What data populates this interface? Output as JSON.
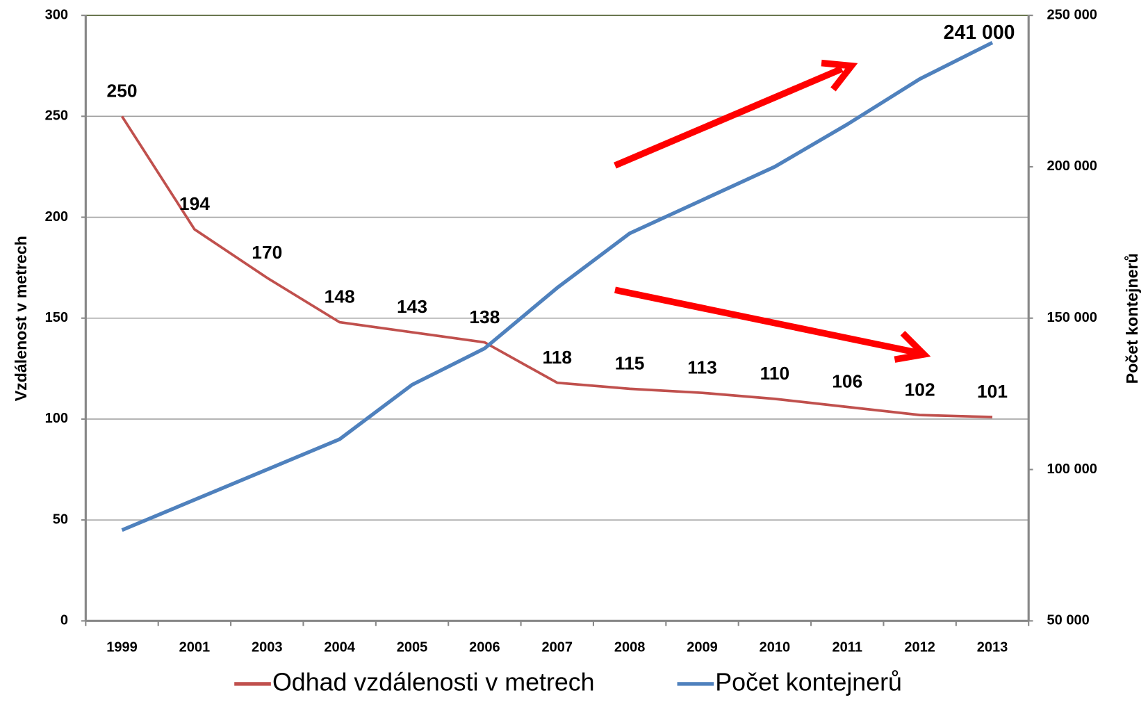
{
  "chart_data": {
    "type": "line",
    "categories": [
      "1999",
      "2001",
      "2003",
      "2004",
      "2005",
      "2006",
      "2007",
      "2008",
      "2009",
      "2010",
      "2011",
      "2012",
      "2013"
    ],
    "y_label": "Vzdálenost v metrech",
    "y2_label": "Počet kontejnerů",
    "ylim": [
      0,
      300
    ],
    "yticks": [
      0,
      50,
      100,
      150,
      200,
      250,
      300
    ],
    "y2lim": [
      50000,
      250000
    ],
    "y2ticks": [
      {
        "value": 50000,
        "label": "50 000"
      },
      {
        "value": 100000,
        "label": "100 000"
      },
      {
        "value": 150000,
        "label": "150 000"
      },
      {
        "value": 200000,
        "label": "200 000"
      },
      {
        "value": 250000,
        "label": "250 000"
      }
    ],
    "grid": true,
    "legend": "bottom",
    "series": [
      {
        "name": "Odhad vzdálenosti v metrech",
        "color": "#c0504d",
        "values": [
          250,
          194,
          170,
          148,
          143,
          138,
          118,
          115,
          113,
          110,
          106,
          102,
          101
        ]
      },
      {
        "name": "Počet kontejnerů",
        "color": "#4f81bd",
        "axis": "y2",
        "values": [
          80000,
          90000,
          100000,
          110000,
          128000,
          140000,
          160000,
          178000,
          189000,
          200000,
          214000,
          229000,
          241000
        ],
        "value_labels": [
          null,
          null,
          null,
          null,
          null,
          null,
          null,
          null,
          null,
          null,
          null,
          null,
          "241 000"
        ]
      }
    ]
  }
}
